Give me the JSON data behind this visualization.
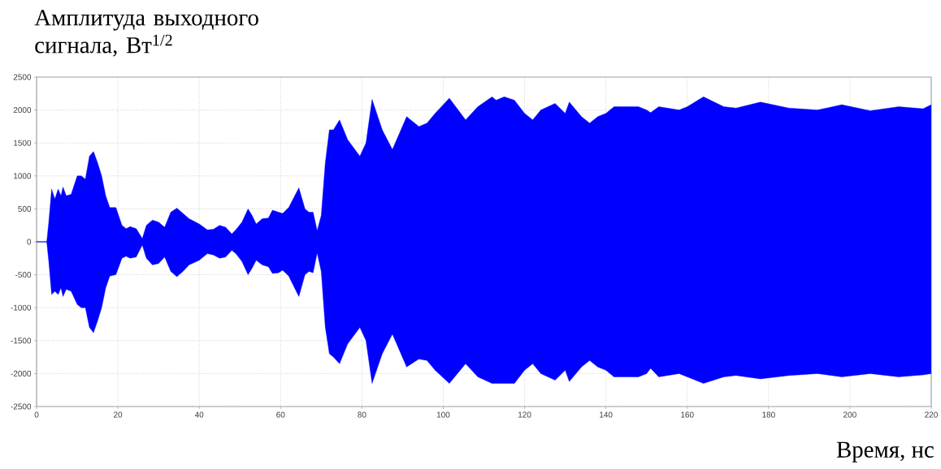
{
  "chart_data": {
    "type": "area",
    "ylabel": "Амплитуда выходного сигнала, Вт$^{1/2}$",
    "xlabel": "Время, нс",
    "xlim": [
      0,
      220
    ],
    "ylim": [
      -2500,
      2500
    ],
    "xticks": [
      0,
      20,
      40,
      60,
      80,
      100,
      120,
      140,
      160,
      180,
      200,
      220
    ],
    "yticks": [
      -2500,
      -2000,
      -1500,
      -1000,
      -500,
      0,
      500,
      1000,
      1500,
      2000,
      2500
    ],
    "grid": true,
    "series": [
      {
        "color": "#0000ff",
        "x": [
          0,
          2.5,
          3,
          3.7,
          4.5,
          5.3,
          6,
          6.5,
          7.3,
          8.5,
          10,
          11,
          12,
          13,
          14,
          15,
          16,
          17,
          18,
          19.5,
          21,
          22,
          23,
          24.5,
          26,
          27,
          28.5,
          30,
          31.5,
          33,
          34.5,
          36,
          37.5,
          40,
          42,
          43.5,
          45,
          46.5,
          48,
          49,
          50.5,
          52,
          53,
          54,
          55.5,
          57,
          58,
          59.5,
          60.5,
          62,
          64.5,
          66,
          67,
          68,
          69,
          70,
          71,
          72,
          73,
          74.5,
          76.5,
          79.5,
          81,
          82.5,
          85,
          87.5,
          91,
          94,
          96,
          98,
          101.5,
          105.5,
          108.5,
          112,
          113,
          115,
          117.5,
          120,
          122,
          124,
          127.5,
          130,
          131,
          134,
          136,
          138,
          140,
          142,
          148,
          150,
          151,
          153,
          158,
          160,
          164,
          169,
          172,
          178,
          185,
          192,
          198,
          205,
          212,
          218,
          220
        ],
        "values": [
          0,
          0,
          300,
          800,
          650,
          800,
          700,
          830,
          700,
          720,
          1000,
          1000,
          950,
          1300,
          1370,
          1200,
          1000,
          700,
          520,
          520,
          250,
          200,
          230,
          200,
          50,
          250,
          330,
          300,
          220,
          450,
          510,
          430,
          350,
          270,
          180,
          190,
          250,
          220,
          120,
          180,
          300,
          500,
          400,
          270,
          350,
          360,
          480,
          450,
          430,
          520,
          820,
          500,
          450,
          450,
          170,
          400,
          1200,
          1700,
          1700,
          1850,
          1550,
          1300,
          1500,
          2160,
          1700,
          1400,
          1900,
          1750,
          1800,
          1950,
          2180,
          1850,
          2050,
          2200,
          2150,
          2200,
          2150,
          1950,
          1850,
          2000,
          2100,
          1950,
          2120,
          1900,
          1800,
          1900,
          1950,
          2050,
          2050,
          2000,
          1960,
          2050,
          2000,
          2050,
          2200,
          2050,
          2030,
          2120,
          2030,
          2000,
          2080,
          1990,
          2050,
          2020,
          2080
        ]
      },
      {
        "color": "#0000ff",
        "x": [
          0,
          2.5,
          3,
          3.7,
          4.5,
          5.3,
          6,
          6.5,
          7.3,
          8.5,
          10,
          11,
          12,
          13,
          14,
          15,
          16,
          17,
          18,
          19.5,
          21,
          22,
          23,
          24.5,
          26,
          27,
          28.5,
          30,
          31.5,
          33,
          34.5,
          36,
          37.5,
          40,
          42,
          43.5,
          45,
          46.5,
          48,
          49,
          50.5,
          52,
          53,
          54,
          55.5,
          57,
          58,
          59.5,
          60.5,
          62,
          64.5,
          66,
          67,
          68,
          69,
          70,
          71,
          72,
          73,
          74.5,
          76.5,
          79.5,
          81,
          82.5,
          85,
          87.5,
          91,
          94,
          96,
          98,
          101.5,
          105.5,
          108.5,
          112,
          113,
          115,
          117.5,
          120,
          122,
          124,
          127.5,
          130,
          131,
          134,
          136,
          138,
          140,
          142,
          148,
          150,
          151,
          153,
          158,
          160,
          164,
          169,
          172,
          178,
          185,
          192,
          198,
          205,
          212,
          218,
          220
        ],
        "values": [
          0,
          0,
          -300,
          -800,
          -750,
          -800,
          -700,
          -830,
          -720,
          -750,
          -950,
          -1000,
          -1000,
          -1300,
          -1380,
          -1200,
          -1000,
          -700,
          -520,
          -500,
          -250,
          -220,
          -250,
          -230,
          -50,
          -250,
          -350,
          -330,
          -230,
          -450,
          -530,
          -450,
          -350,
          -280,
          -180,
          -200,
          -250,
          -230,
          -130,
          -180,
          -300,
          -500,
          -400,
          -280,
          -350,
          -380,
          -480,
          -470,
          -430,
          -520,
          -830,
          -500,
          -450,
          -470,
          -170,
          -450,
          -1300,
          -1700,
          -1750,
          -1850,
          -1550,
          -1300,
          -1500,
          -2150,
          -1700,
          -1400,
          -1900,
          -1780,
          -1800,
          -1950,
          -2150,
          -1850,
          -2050,
          -2150,
          -2150,
          -2150,
          -2150,
          -1950,
          -1850,
          -2000,
          -2100,
          -1950,
          -2120,
          -1900,
          -1800,
          -1900,
          -1950,
          -2050,
          -2050,
          -2000,
          -1920,
          -2050,
          -2000,
          -2050,
          -2150,
          -2050,
          -2030,
          -2080,
          -2030,
          -2000,
          -2050,
          -2000,
          -2050,
          -2020,
          -2000
        ]
      }
    ]
  }
}
